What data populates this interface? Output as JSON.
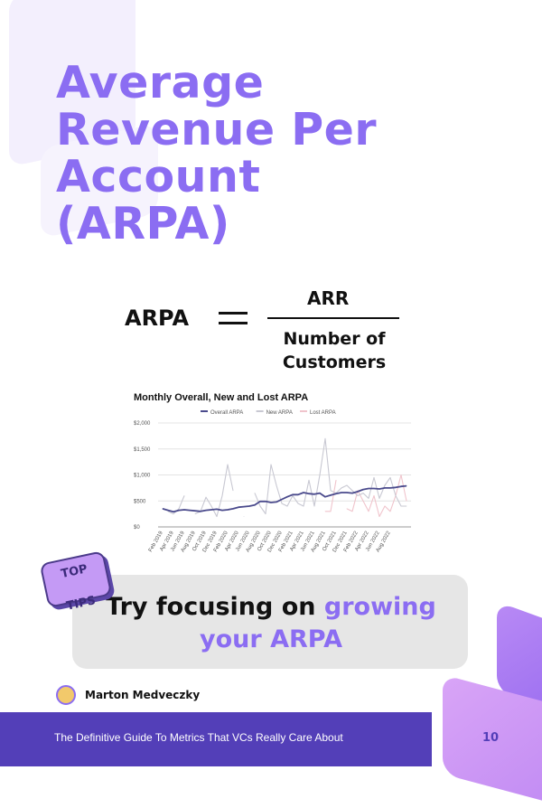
{
  "title": "Average Revenue Per Account (ARPA)",
  "formula": {
    "lhs": "ARPA",
    "numerator": "ARR",
    "denominator_line1": "Number of",
    "denominator_line2": "Customers"
  },
  "chart_data": {
    "type": "line",
    "title": "Monthly Overall, New and Lost ARPA",
    "xlabel": "",
    "ylabel": "",
    "ylim": [
      0,
      2000
    ],
    "yticks": [
      "$0",
      "$500",
      "$1,000",
      "$1,500",
      "$2,000"
    ],
    "grid": true,
    "legend": "top",
    "xticks": [
      "Feb 2019",
      "Apr 2019",
      "Jun 2019",
      "Aug 2019",
      "Oct 2019",
      "Dec 2019",
      "Feb 2020",
      "Apr 2020",
      "Jun 2020",
      "Aug 2020",
      "Oct 2020",
      "Dec 2020",
      "Feb 2021",
      "Apr 2021",
      "Jun 2021",
      "Aug 2021",
      "Oct 2021",
      "Dec 2021",
      "Feb 2022",
      "Apr 2022",
      "Jun 2022",
      "Aug 2022"
    ],
    "series": [
      {
        "name": "Overall ARPA",
        "color": "#4a4a8c",
        "values": [
          350,
          320,
          290,
          320,
          330,
          320,
          310,
          300,
          320,
          330,
          340,
          320,
          330,
          350,
          380,
          390,
          400,
          420,
          490,
          490,
          470,
          480,
          530,
          580,
          620,
          620,
          660,
          640,
          630,
          650,
          580,
          610,
          640,
          660,
          660,
          650,
          680,
          720,
          740,
          740,
          730,
          750,
          750,
          760,
          780,
          790
        ]
      },
      {
        "name": "New ARPA",
        "color": "#c8c8d2",
        "values": [
          null,
          300,
          250,
          350,
          600,
          null,
          250,
          300,
          570,
          400,
          200,
          600,
          1200,
          700,
          null,
          200,
          null,
          650,
          400,
          250,
          1200,
          800,
          450,
          400,
          600,
          450,
          400,
          900,
          400,
          1000,
          1700,
          700,
          650,
          750,
          800,
          700,
          600,
          650,
          550,
          950,
          550,
          800,
          950,
          600,
          400,
          400
        ]
      },
      {
        "name": "Lost ARPA",
        "color": "#f0c4cc",
        "values": [
          null,
          null,
          null,
          null,
          null,
          null,
          null,
          null,
          null,
          null,
          null,
          null,
          null,
          null,
          null,
          null,
          null,
          null,
          null,
          null,
          null,
          null,
          null,
          null,
          null,
          null,
          null,
          null,
          null,
          null,
          300,
          300,
          900,
          null,
          350,
          300,
          700,
          500,
          300,
          600,
          200,
          400,
          300,
          600,
          1000,
          500
        ]
      }
    ]
  },
  "tip": {
    "badge_line1": "TOP",
    "badge_line2": "TIPS",
    "text_plain": "Try focusing on ",
    "text_highlight": "growing your ARPA"
  },
  "author": "Marton Medveczky",
  "footer": {
    "text": "The Definitive Guide To  Metrics That VCs Really Care About",
    "page": "10"
  },
  "colors": {
    "accent": "#8b6df2",
    "footer": "#533fb8"
  }
}
